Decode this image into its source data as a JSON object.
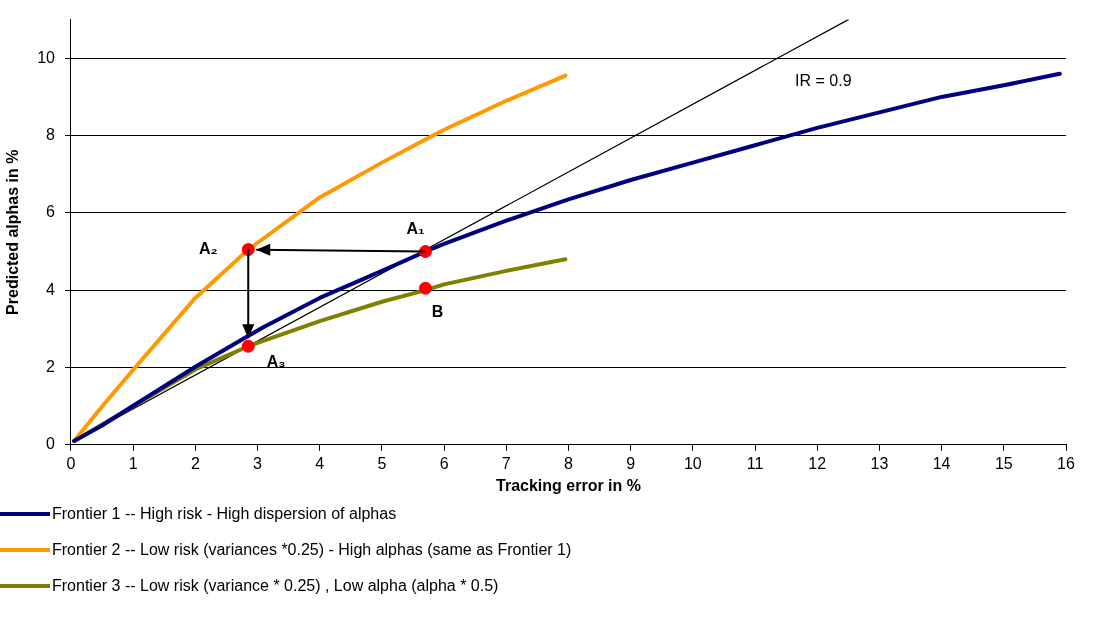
{
  "chart_data": {
    "type": "line",
    "xlabel": "Tracking error in %",
    "ylabel": "Predicted alphas in %",
    "xlim": [
      0,
      16
    ],
    "ylim": [
      0,
      11
    ],
    "xticks": [
      0,
      1,
      2,
      3,
      4,
      5,
      6,
      7,
      8,
      9,
      10,
      11,
      12,
      13,
      14,
      15,
      16
    ],
    "yticks": [
      0,
      2,
      4,
      6,
      8,
      10
    ],
    "grid": "y",
    "legend": "bottom",
    "series": [
      {
        "name": "Frontier 1 -- High risk - High dispersion of alphas",
        "color": "#000080",
        "x": [
          0.05,
          0.5,
          1,
          2,
          3.1,
          4,
          5,
          5.7,
          6,
          7,
          8,
          9,
          10,
          11,
          12,
          13,
          14,
          15,
          15.9
        ],
        "values": [
          0.1,
          0.5,
          1.01,
          2.02,
          3.05,
          3.8,
          4.5,
          5.0,
          5.2,
          5.8,
          6.35,
          6.85,
          7.3,
          7.75,
          8.2,
          8.6,
          9.0,
          9.3,
          9.6
        ]
      },
      {
        "name": "Frontier 2  -- Low risk (variances *0.25) - High alphas (same as Frontier 1)",
        "color": "#ff9900",
        "x": [
          0.05,
          0.5,
          1,
          2,
          2.85,
          4,
          5,
          5.7,
          6,
          7,
          7.95
        ],
        "values": [
          0.1,
          0.99,
          1.94,
          3.8,
          5.05,
          6.4,
          7.3,
          7.9,
          8.15,
          8.9,
          9.55
        ]
      },
      {
        "name": "Frontier 3 --  Low risk (variance * 0.25) , Low alpha  (alpha * 0.5)",
        "color": "#808000",
        "x": [
          0.05,
          1,
          2,
          2.85,
          4,
          5,
          5.7,
          6,
          7,
          7.95
        ],
        "values": [
          0.1,
          1.0,
          1.95,
          2.55,
          3.2,
          3.7,
          4.0,
          4.15,
          4.5,
          4.8
        ]
      },
      {
        "color": "#000000",
        "x": [
          0.05,
          12.5
        ],
        "values": [
          0.1,
          11
        ]
      },
      {
        "type": "scatter",
        "marker": "circle",
        "color": "#ff0000",
        "x": [
          5.7,
          2.85,
          2.85,
          5.7
        ],
        "values": [
          5.0,
          5.05,
          2.55,
          4.05
        ],
        "value_labels": [
          "A₁",
          "A₂",
          "A₃",
          "B"
        ]
      }
    ],
    "annotations": [
      "IR = 0.9"
    ]
  }
}
